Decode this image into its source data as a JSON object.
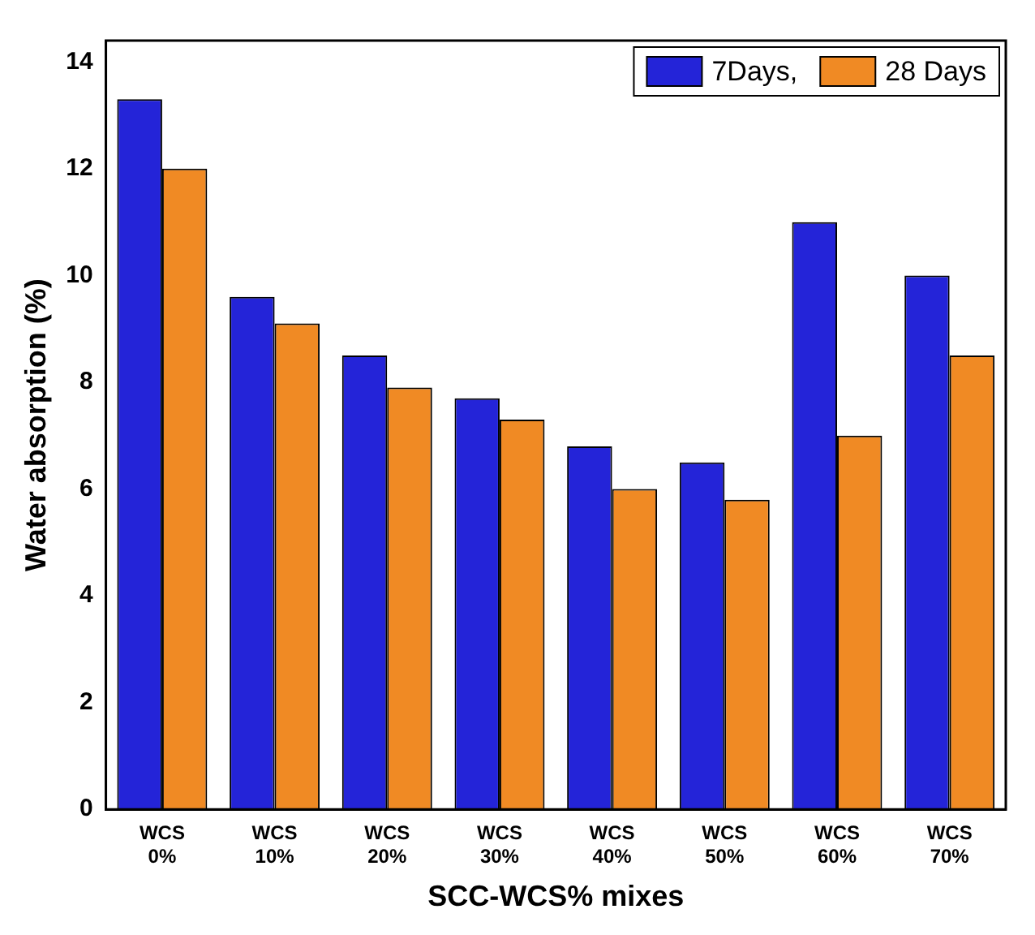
{
  "chart_data": {
    "type": "bar",
    "xlabel": "SCC-WCS% mixes",
    "ylabel": "Water absorption (%)",
    "categories": [
      "WCS 0%",
      "WCS 10%",
      "WCS 20%",
      "WCS 30%",
      "WCS 40%",
      "WCS 50%",
      "WCS 60%",
      "WCS 70%"
    ],
    "series": [
      {
        "name": "7Days,",
        "color": "#2424d8",
        "values": [
          13.3,
          9.6,
          8.5,
          7.7,
          6.8,
          6.5,
          11.0,
          10.0
        ]
      },
      {
        "name": "28 Days",
        "color": "#f08a24",
        "values": [
          12.0,
          9.1,
          7.9,
          7.3,
          6.0,
          5.8,
          7.0,
          8.5
        ]
      }
    ],
    "ylim": [
      0,
      14.4
    ],
    "yticks": [
      0,
      2,
      4,
      6,
      8,
      10,
      12,
      14
    ],
    "grid": false,
    "legend": "top right"
  }
}
